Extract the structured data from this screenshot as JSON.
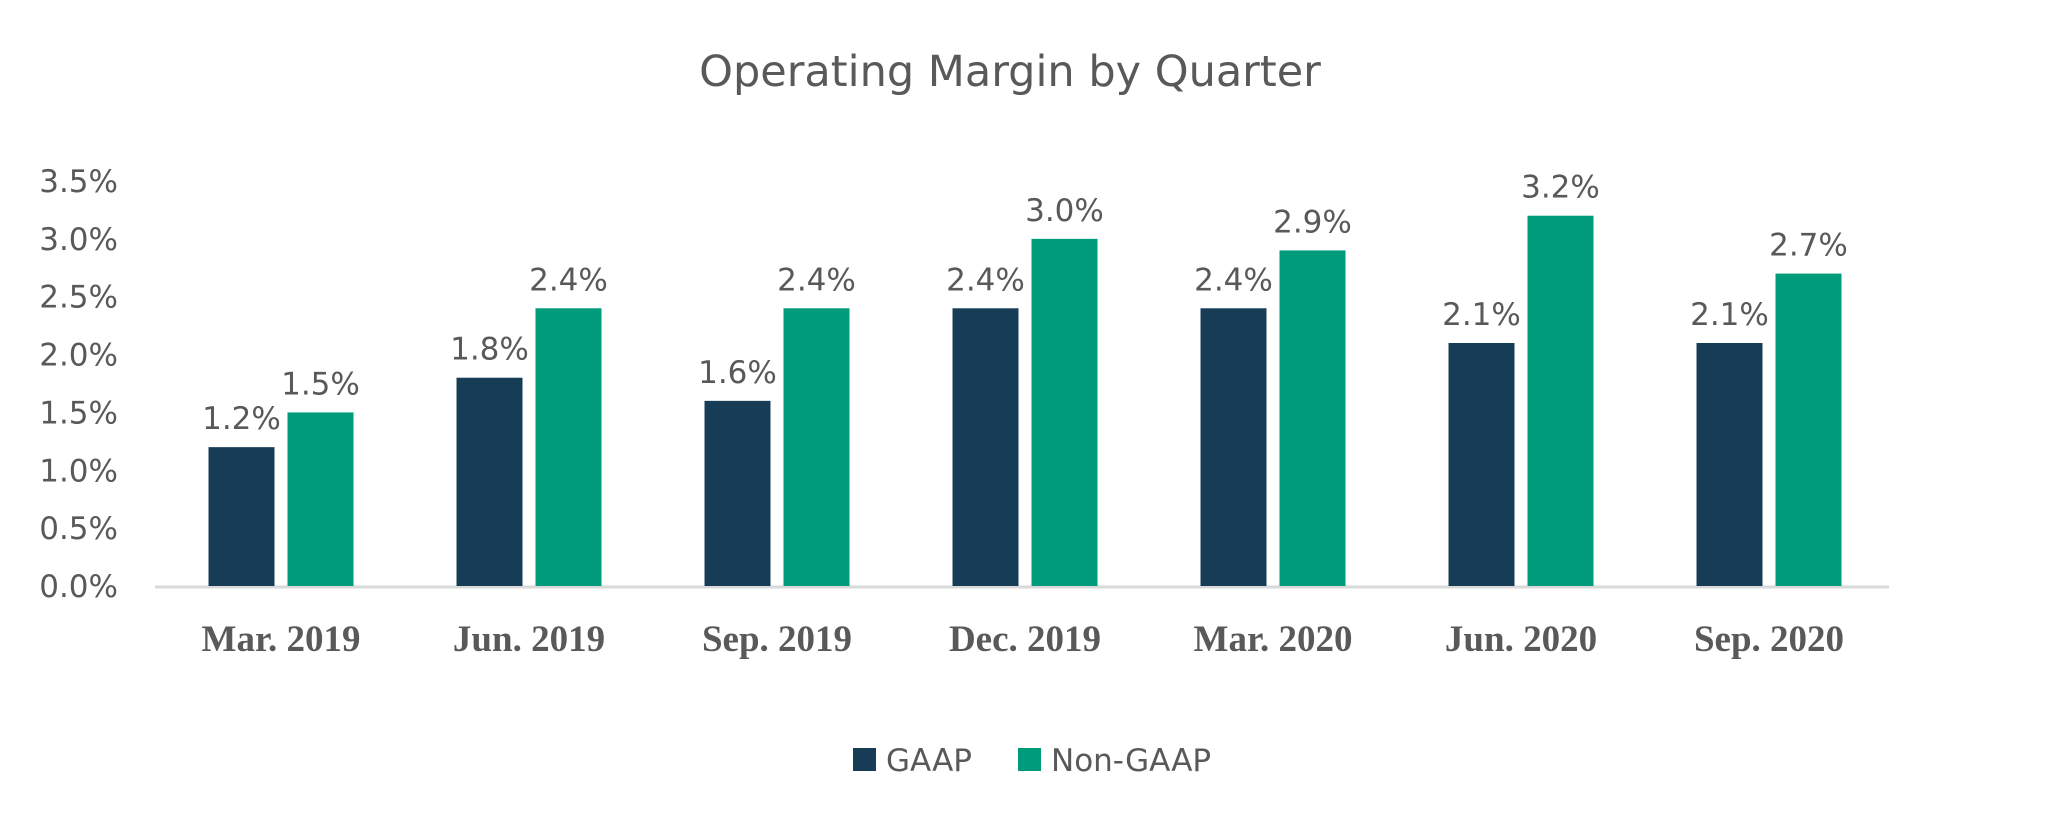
{
  "chart_data": {
    "type": "bar",
    "title": "Operating Margin by Quarter",
    "xlabel": "",
    "ylabel": "",
    "categories": [
      "Mar. 2019",
      "Jun. 2019",
      "Sep. 2019",
      "Dec. 2019",
      "Mar. 2020",
      "Jun. 2020",
      "Sep. 2020"
    ],
    "series": [
      {
        "name": "GAAP",
        "values": [
          1.2,
          1.8,
          1.6,
          2.4,
          2.4,
          2.1,
          2.1
        ],
        "labels": [
          "1.2%",
          "1.8%",
          "1.6%",
          "2.4%",
          "2.4%",
          "2.1%",
          "2.1%"
        ],
        "color": "#173C56"
      },
      {
        "name": "Non-GAAP",
        "values": [
          1.5,
          2.4,
          2.4,
          3.0,
          2.9,
          3.2,
          2.7
        ],
        "labels": [
          "1.5%",
          "2.4%",
          "2.4%",
          "3.0%",
          "2.9%",
          "3.2%",
          "2.7%"
        ],
        "color": "#009B7B"
      }
    ],
    "ylim": [
      0,
      3.5
    ],
    "yticks": [
      "0.0%",
      "0.5%",
      "1.0%",
      "1.5%",
      "2.0%",
      "2.5%",
      "3.0%",
      "3.5%"
    ],
    "grid": false,
    "legend": "bottom"
  }
}
